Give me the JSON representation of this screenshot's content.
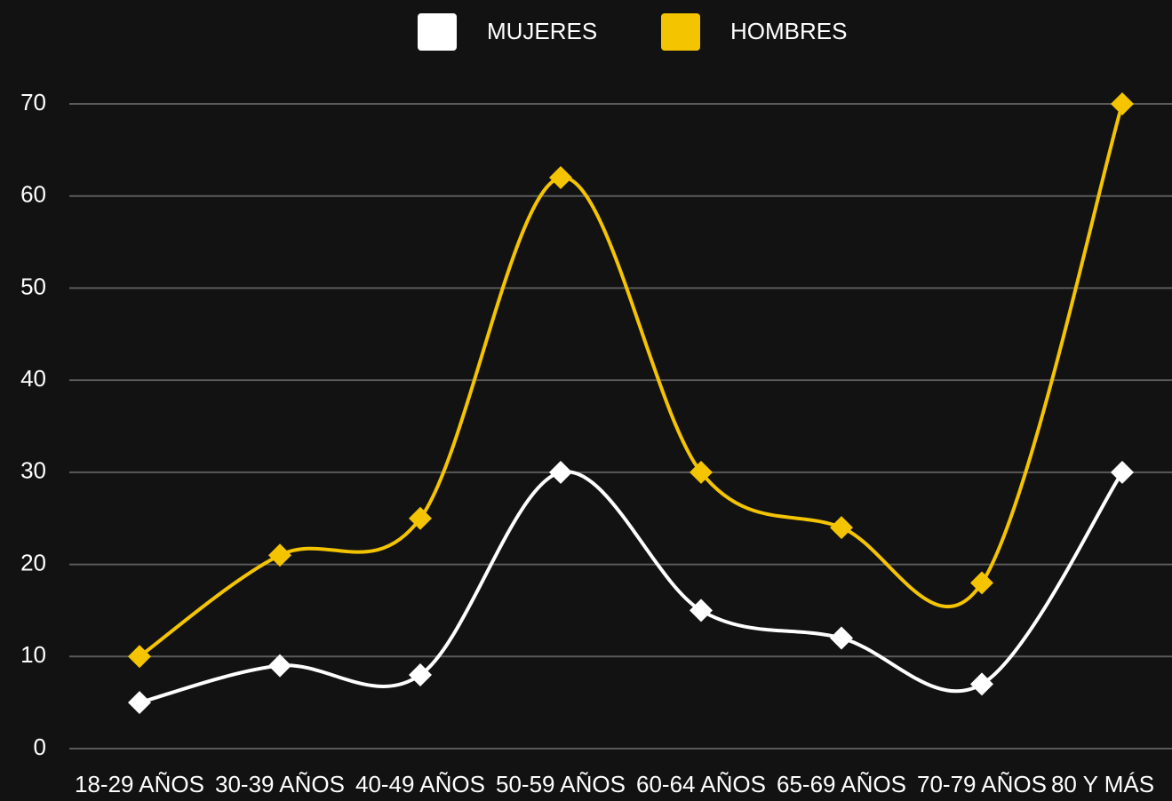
{
  "chart_data": {
    "type": "line",
    "categories": [
      "18-29 AÑOS",
      "30-39 AÑOS",
      "40-49 AÑOS",
      "50-59 AÑOS",
      "60-64 AÑOS",
      "65-69 AÑOS",
      "70-79 AÑOS",
      "80 Y MÁS"
    ],
    "series": [
      {
        "name": "MUJERES",
        "color": "#ffffff",
        "values": [
          5,
          9,
          8,
          30,
          15,
          12,
          7,
          30
        ]
      },
      {
        "name": "HOMBRES",
        "color": "#f5c400",
        "values": [
          10,
          21,
          25,
          62,
          30,
          24,
          18,
          70
        ]
      }
    ],
    "ylim": [
      0,
      70
    ],
    "yticks": [
      0,
      10,
      20,
      30,
      40,
      50,
      60,
      70
    ],
    "grid": true,
    "legend": "top"
  }
}
